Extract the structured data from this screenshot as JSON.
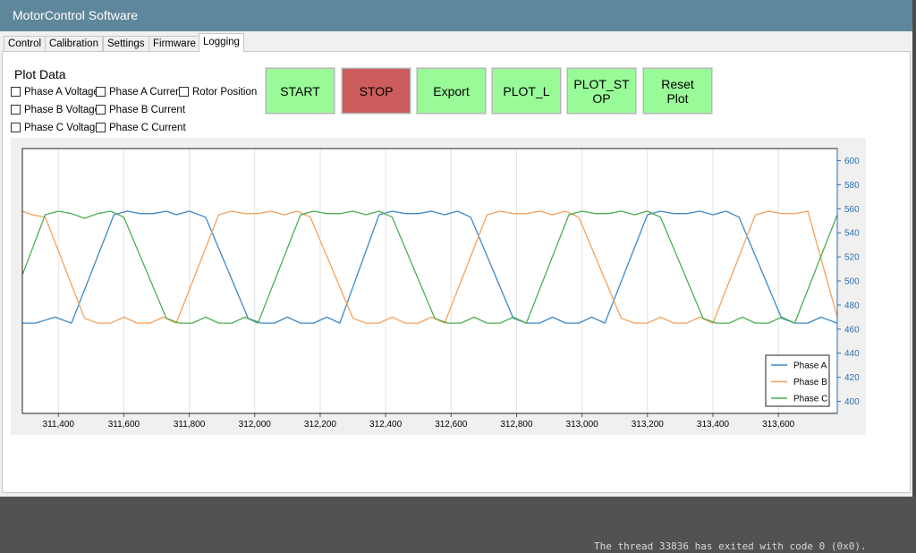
{
  "window": {
    "title": "MotorControl Software"
  },
  "tabs": [
    {
      "label": "Control",
      "active": false
    },
    {
      "label": "Calibration",
      "active": false
    },
    {
      "label": "Settings",
      "active": false
    },
    {
      "label": "Firmware",
      "active": false
    },
    {
      "label": "Logging",
      "active": true
    }
  ],
  "plot_data": {
    "label": "Plot Data",
    "checkboxes": [
      {
        "label": "Phase A Voltage",
        "checked": false
      },
      {
        "label": "Phase A Current",
        "checked": false
      },
      {
        "label": "Rotor Position",
        "checked": false
      },
      {
        "label": "Phase B Voltage",
        "checked": false
      },
      {
        "label": "Phase B Current",
        "checked": false
      },
      {
        "label": "Phase C Voltage",
        "checked": false
      },
      {
        "label": "Phase C Current",
        "checked": false
      }
    ]
  },
  "buttons": {
    "start": "START",
    "stop": "STOP",
    "export": "Export",
    "plot_l": "PLOT_L",
    "plot_stop": "PLOT_ST OP",
    "reset_plot": "Reset Plot"
  },
  "colors": {
    "start_button": "#98fb98",
    "stop_button": "#cd5c5c",
    "phase_a": "#3f88c5",
    "phase_b": "#f5a25d",
    "phase_c": "#4caf50",
    "titlebar": "#5f879c"
  },
  "console": {
    "text": "The thread 33836 has exited with code 0 (0x0)."
  },
  "chart_data": {
    "type": "line",
    "title": "",
    "xlabel": "",
    "ylabel": "",
    "xlim": [
      311290,
      313780
    ],
    "ylim": [
      390,
      610
    ],
    "x_ticks": [
      311400,
      311600,
      311800,
      312000,
      312200,
      312400,
      312600,
      312800,
      313000,
      313200,
      313400,
      313600
    ],
    "x_tick_labels": [
      "311,400",
      "311,600",
      "311,800",
      "312,000",
      "312,200",
      "312,400",
      "312,600",
      "312,800",
      "313,000",
      "313,200",
      "313,400",
      "313,600"
    ],
    "y_ticks": [
      400,
      420,
      440,
      460,
      480,
      500,
      520,
      540,
      560,
      580,
      600
    ],
    "y_axis_side": "right",
    "grid": "vertical",
    "legend": "bottom-right",
    "series": [
      {
        "name": "Phase A",
        "x": [
          311290,
          311330,
          311390,
          311440,
          311570,
          311610,
          311650,
          311690,
          311730,
          311760,
          311800,
          311850,
          311980,
          312020,
          312060,
          312100,
          312140,
          312180,
          312220,
          312260,
          312380,
          312420,
          312460,
          312500,
          312540,
          312580,
          312620,
          312660,
          312790,
          312830,
          312870,
          312910,
          312950,
          312990,
          313030,
          313070,
          313200,
          313240,
          313280,
          313320,
          313360,
          313400,
          313440,
          313480,
          313610,
          313650,
          313690,
          313730,
          313780
        ],
        "y": [
          465,
          465,
          470,
          465,
          555,
          558,
          556,
          556,
          558,
          555,
          558,
          553,
          469,
          465,
          465,
          470,
          465,
          465,
          470,
          465,
          555,
          558,
          556,
          556,
          558,
          555,
          558,
          553,
          469,
          465,
          465,
          470,
          465,
          465,
          470,
          465,
          555,
          558,
          556,
          556,
          558,
          555,
          558,
          553,
          469,
          465,
          465,
          470,
          465
        ]
      },
      {
        "name": "Phase B",
        "x": [
          311290,
          311320,
          311360,
          311480,
          311520,
          311560,
          311600,
          311640,
          311680,
          311720,
          311760,
          311890,
          311930,
          311970,
          312010,
          312050,
          312090,
          312130,
          312170,
          312300,
          312340,
          312380,
          312420,
          312460,
          312500,
          312540,
          312580,
          312710,
          312750,
          312790,
          312830,
          312870,
          312910,
          312950,
          312990,
          313120,
          313160,
          313200,
          313240,
          313280,
          313320,
          313360,
          313400,
          313530,
          313570,
          313610,
          313650,
          313690,
          313780
        ],
        "y": [
          558,
          555,
          553,
          469,
          465,
          465,
          470,
          465,
          465,
          470,
          465,
          555,
          558,
          556,
          556,
          558,
          555,
          558,
          553,
          469,
          465,
          465,
          470,
          465,
          465,
          470,
          465,
          555,
          558,
          556,
          556,
          558,
          555,
          558,
          553,
          469,
          465,
          465,
          470,
          465,
          465,
          470,
          465,
          555,
          558,
          556,
          556,
          558,
          470
        ]
      },
      {
        "name": "Phase C",
        "x": [
          311290,
          311360,
          311400,
          311440,
          311480,
          311520,
          311560,
          311600,
          311730,
          311770,
          311810,
          311850,
          311890,
          311930,
          311970,
          312010,
          312140,
          312180,
          312220,
          312260,
          312300,
          312340,
          312380,
          312420,
          312550,
          312590,
          312630,
          312670,
          312710,
          312750,
          312790,
          312830,
          312960,
          313000,
          313040,
          313080,
          313120,
          313160,
          313200,
          313240,
          313370,
          313410,
          313450,
          313490,
          313530,
          313570,
          313610,
          313650,
          313780
        ],
        "y": [
          505,
          555,
          558,
          556,
          552,
          556,
          558,
          553,
          469,
          465,
          465,
          470,
          465,
          465,
          470,
          465,
          555,
          558,
          556,
          556,
          558,
          555,
          558,
          553,
          469,
          465,
          465,
          470,
          465,
          465,
          470,
          465,
          555,
          558,
          556,
          556,
          558,
          555,
          558,
          553,
          469,
          465,
          465,
          470,
          465,
          465,
          470,
          465,
          555
        ]
      }
    ]
  }
}
